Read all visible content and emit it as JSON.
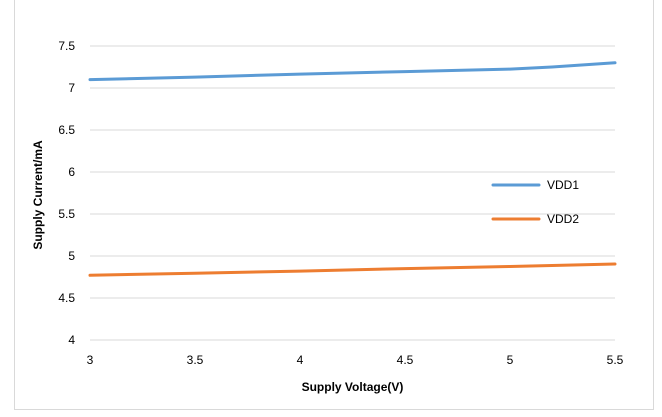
{
  "chart_data": {
    "type": "line",
    "title": "",
    "xlabel": "Supply Voltage(V)",
    "ylabel": "Supply Current/mA",
    "xlim": [
      3,
      5.5
    ],
    "ylim": [
      4,
      7.5
    ],
    "x_ticks": [
      3,
      3.5,
      4,
      4.5,
      5,
      5.5
    ],
    "y_ticks": [
      4,
      4.5,
      5,
      5.5,
      6,
      6.5,
      7,
      7.5
    ],
    "x_tick_labels": [
      "3",
      "3.5",
      "4",
      "4.5",
      "5",
      "5.5"
    ],
    "y_tick_labels": [
      "4",
      "4.5",
      "5",
      "5.5",
      "6",
      "6.5",
      "7",
      "7.5"
    ],
    "grid": "horizontal",
    "legend_position": "right",
    "series": [
      {
        "name": "VDD1",
        "color": "#5b9bd5",
        "x": [
          3,
          3.5,
          4,
          4.5,
          5,
          5.2,
          5.5
        ],
        "y": [
          7.1,
          7.13,
          7.165,
          7.195,
          7.225,
          7.25,
          7.3
        ]
      },
      {
        "name": "VDD2",
        "color": "#ed7d31",
        "x": [
          3,
          3.5,
          4,
          4.5,
          5,
          5.5
        ],
        "y": [
          4.77,
          4.795,
          4.82,
          4.85,
          4.875,
          4.905
        ]
      }
    ]
  }
}
